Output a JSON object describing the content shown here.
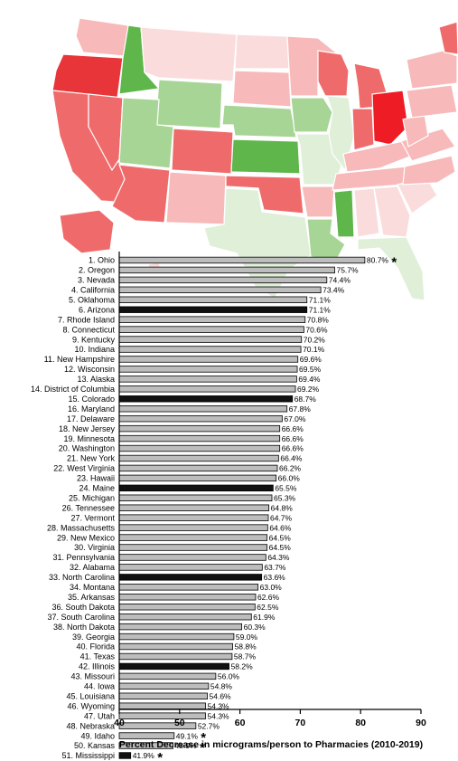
{
  "map": {
    "colors": {
      "dark_red": "#e8353a",
      "red": "#ef6b6b",
      "medium_red": "#f49393",
      "light_red": "#f7b9b9",
      "pale_red": "#fbdcdc",
      "light_green": "#dfefd8",
      "green_light": "#a7d595",
      "green": "#5fb64a",
      "ohio": "#ee1c24"
    }
  },
  "chart_data": {
    "type": "bar",
    "orientation": "horizontal",
    "xlabel": "Percent Decrease in micrograms/person to Pharmacies (2010-2019)",
    "xlim": [
      40,
      90
    ],
    "xticks": [
      "40",
      "50",
      "60",
      "70",
      "80",
      "90"
    ],
    "categories": [
      "1. Ohio",
      "2. Oregon",
      "3. Nevada",
      "4. California",
      "5. Oklahoma",
      "6. Arizona",
      "7. Rhode Island",
      "8. Connecticut",
      "9. Kentucky",
      "10. Indiana",
      "11. New Hampshire",
      "12. Wisconsin",
      "13. Alaska",
      "14. District of Columbia",
      "15. Colorado",
      "16. Maryland",
      "17. Delaware",
      "18. New Jersey",
      "19. Minnesota",
      "20. Washington",
      "21. New York",
      "22. West Virginia",
      "23. Hawaii",
      "24. Maine",
      "25. Michigan",
      "26. Tennessee",
      "27. Vermont",
      "28. Massachusetts",
      "29. New Mexico",
      "30. Virginia",
      "31. Pennsylvania",
      "32. Alabama",
      "33. North Carolina",
      "34. Montana",
      "35. Arkansas",
      "36. South Dakota",
      "37. South Carolina",
      "38. North Dakota",
      "39. Georgia",
      "40. Florida",
      "41. Texas",
      "42. Illinois",
      "43. Missouri",
      "44. Iowa",
      "45. Louisiana",
      "46. Wyoming",
      "47. Utah",
      "48. Nebraska",
      "49. Idaho",
      "50. Kansas",
      "51. Mississippi"
    ],
    "values": [
      80.7,
      75.7,
      74.4,
      73.4,
      71.1,
      71.1,
      70.8,
      70.6,
      70.2,
      70.1,
      69.6,
      69.5,
      69.4,
      69.2,
      68.7,
      67.8,
      67.0,
      66.6,
      66.6,
      66.6,
      66.4,
      66.2,
      66.0,
      65.5,
      65.3,
      64.8,
      64.7,
      64.6,
      64.5,
      64.5,
      64.3,
      63.7,
      63.6,
      63.0,
      62.6,
      62.5,
      61.9,
      60.3,
      59.0,
      58.8,
      58.7,
      58.2,
      56.0,
      54.8,
      54.6,
      54.3,
      54.3,
      52.7,
      49.1,
      48.9,
      41.9
    ],
    "value_labels": [
      "80.7%",
      "75.7%",
      "74.4%",
      "73.4%",
      "71.1%",
      "71.1%",
      "70.8%",
      "70.6%",
      "70.2%",
      "70.1%",
      "69.6%",
      "69.5%",
      "69.4%",
      "69.2%",
      "68.7%",
      "67.8%",
      "67.0%",
      "66.6%",
      "66.6%",
      "66.6%",
      "66.4%",
      "66.2%",
      "66.0%",
      "65.5%",
      "65.3%",
      "64.8%",
      "64.7%",
      "64.6%",
      "64.5%",
      "64.5%",
      "64.3%",
      "63.7%",
      "63.6%",
      "63.0%",
      "62.6%",
      "62.5%",
      "61.9%",
      "60.3%",
      "59.0%",
      "58.8%",
      "58.7%",
      "58.2%",
      "56.0%",
      "54.8%",
      "54.6%",
      "54.3%",
      "54.3%",
      "52.7%",
      "49.1%",
      "48.9%",
      "41.9%"
    ],
    "highlighted": [
      5,
      14,
      23,
      32,
      41,
      50
    ],
    "starred": [
      0,
      48,
      49,
      50
    ],
    "star_symbol": "*",
    "bar_color": "#bdbdbd",
    "highlight_color": "#111111",
    "grid": false
  }
}
